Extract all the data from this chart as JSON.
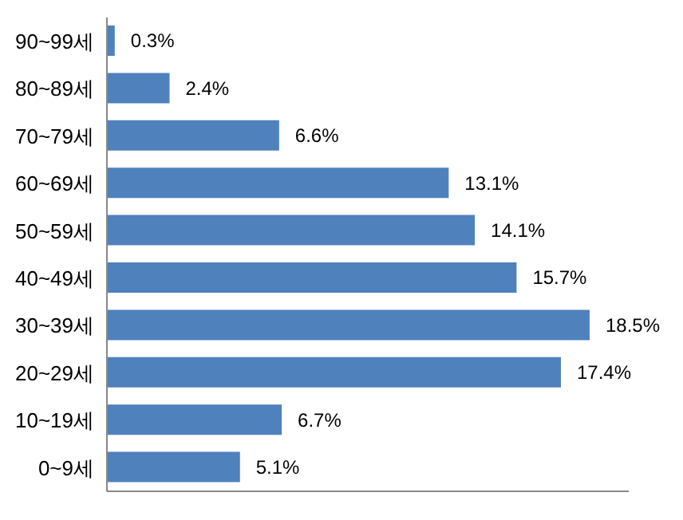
{
  "chart_data": {
    "type": "bar",
    "orientation": "horizontal",
    "categories": [
      "90~99세",
      "80~89세",
      "70~79세",
      "60~69세",
      "50~59세",
      "40~49세",
      "30~39세",
      "20~29세",
      "10~19세",
      "0~9세"
    ],
    "values": [
      0.3,
      2.4,
      6.6,
      13.1,
      14.1,
      15.7,
      18.5,
      17.4,
      6.7,
      5.1
    ],
    "value_labels": [
      "0.3%",
      "2.4%",
      "6.6%",
      "13.1%",
      "14.1%",
      "15.7%",
      "18.5%",
      "17.4%",
      "6.7%",
      "5.1%"
    ],
    "color": "#4f81bd",
    "xlim": [
      0,
      20
    ],
    "tick_labels": "y",
    "grid": false,
    "legend": false
  }
}
